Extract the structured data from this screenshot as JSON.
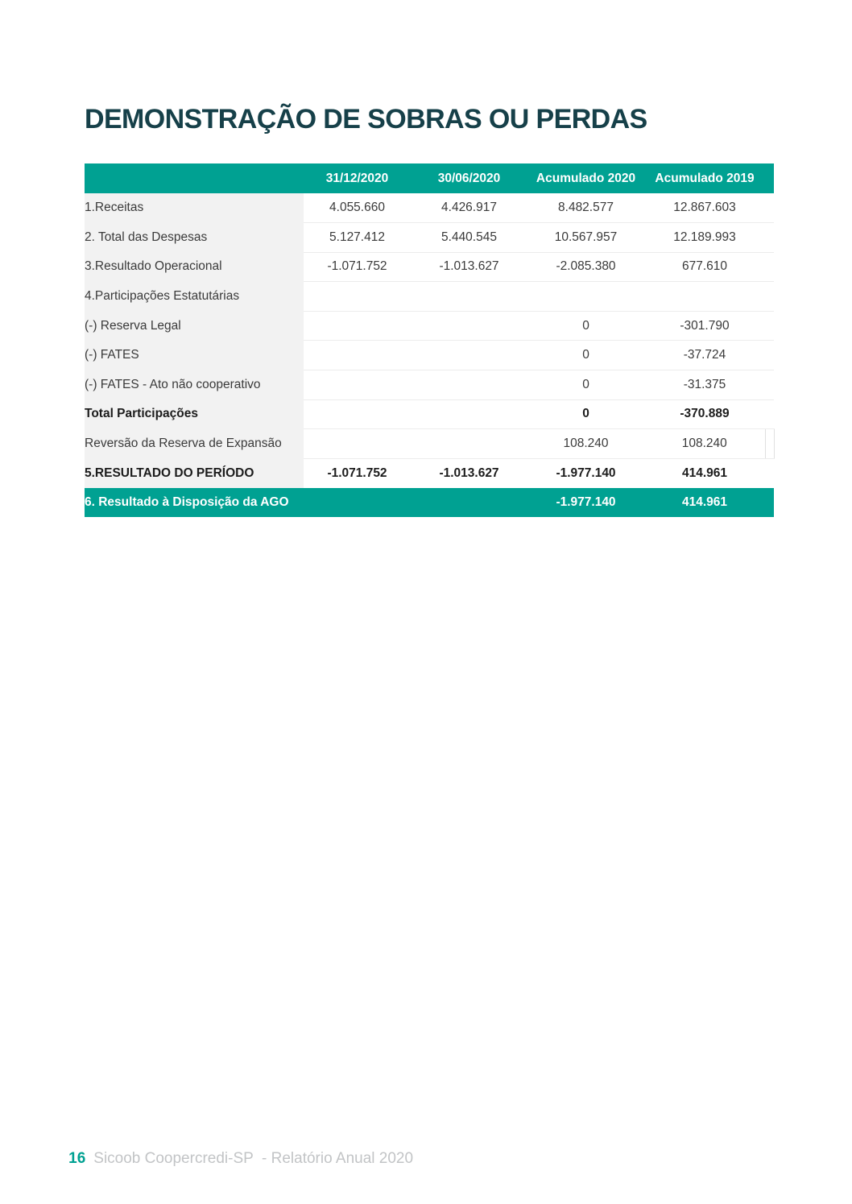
{
  "page": {
    "title": "DEMONSTRAÇÃO DE SOBRAS OU PERDAS",
    "footer": {
      "page_number": "16",
      "text": "Sicoob Coopercredi-SP  - Relatório Anual 2020"
    }
  },
  "colors": {
    "accent_teal": "#00a192",
    "title_color": "#164049",
    "label_column_bg": "#f2f2f2"
  },
  "table": {
    "columns": [
      "",
      "31/12/2020",
      "30/06/2020",
      "Acumulado 2020",
      "Acumulado 2019"
    ],
    "rows": [
      {
        "label": "1.Receitas",
        "values": [
          "4.055.660",
          "4.426.917",
          "8.482.577",
          "12.867.603"
        ],
        "bold": false,
        "highlight": false,
        "notch": false
      },
      {
        "label": "2. Total das Despesas",
        "values": [
          "5.127.412",
          "5.440.545",
          "10.567.957",
          "12.189.993"
        ],
        "bold": false,
        "highlight": false,
        "notch": false
      },
      {
        "label": "3.Resultado Operacional",
        "values": [
          "-1.071.752",
          "-1.013.627",
          "-2.085.380",
          "677.610"
        ],
        "bold": false,
        "highlight": false,
        "notch": false
      },
      {
        "label": "4.Participações Estatutárias",
        "values": [
          "",
          "",
          "",
          ""
        ],
        "bold": false,
        "highlight": false,
        "notch": false
      },
      {
        "label": "(-) Reserva Legal",
        "values": [
          "",
          "",
          "0",
          "-301.790"
        ],
        "bold": false,
        "highlight": false,
        "notch": false
      },
      {
        "label": "(-) FATES",
        "values": [
          "",
          "",
          "0",
          "-37.724"
        ],
        "bold": false,
        "highlight": false,
        "notch": false
      },
      {
        "label": "(-) FATES - Ato não cooperativo",
        "values": [
          "",
          "",
          "0",
          "-31.375"
        ],
        "bold": false,
        "highlight": false,
        "notch": false
      },
      {
        "label": "Total Participações",
        "values": [
          "",
          "",
          "0",
          "-370.889"
        ],
        "bold": true,
        "highlight": false,
        "notch": false
      },
      {
        "label": "Reversão da Reserva de Expansão",
        "values": [
          "",
          "",
          "108.240",
          "108.240"
        ],
        "bold": false,
        "highlight": false,
        "notch": true
      },
      {
        "label": "5.RESULTADO DO PERÍODO",
        "values": [
          "-1.071.752",
          "-1.013.627",
          "-1.977.140",
          "414.961"
        ],
        "bold": true,
        "highlight": false,
        "notch": false
      },
      {
        "label": "6. Resultado à Disposição da AGO",
        "values": [
          "",
          "",
          "-1.977.140",
          "414.961"
        ],
        "bold": true,
        "highlight": true,
        "notch": false
      }
    ]
  }
}
